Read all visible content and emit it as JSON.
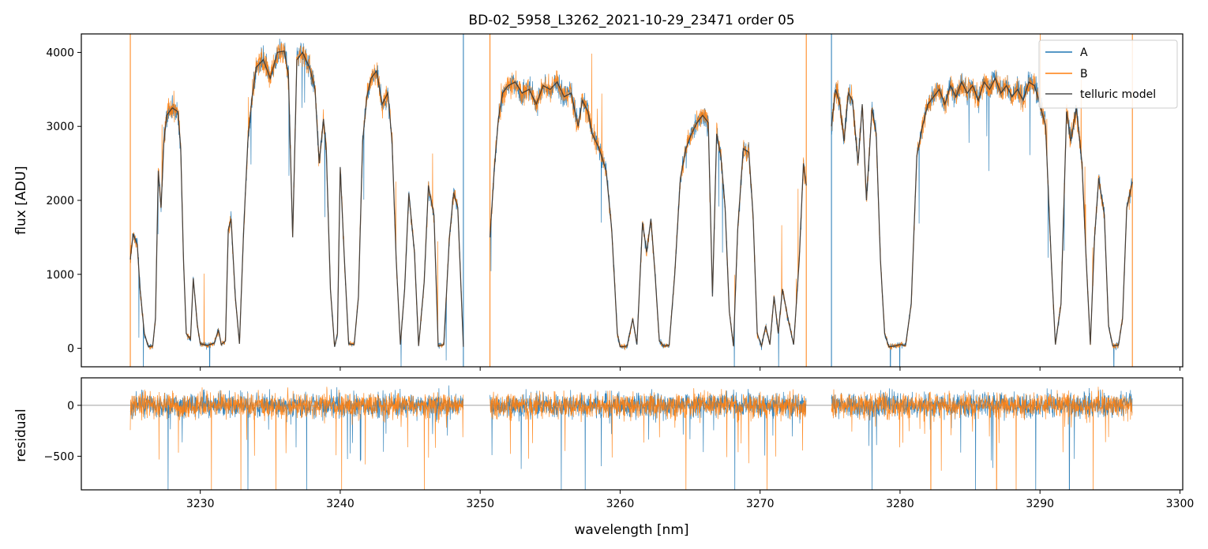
{
  "figure": {
    "title": "BD-02_5958_L3262_2021-10-29_23471  order 05"
  },
  "colors": {
    "A": "#1f77b4",
    "B": "#ff7f0e",
    "model": "#333333",
    "zero_line": "#808080"
  },
  "chart_data": [
    {
      "type": "line",
      "panel": "top",
      "title": "BD-02_5958_L3262_2021-10-29_23471  order 05",
      "xlabel": "",
      "ylabel": "flux [ADU]",
      "xlim": [
        3221.5,
        3300.2
      ],
      "ylim": [
        -250,
        4250
      ],
      "yticks": [
        0,
        1000,
        2000,
        3000,
        4000
      ],
      "xticks": [
        3230,
        3240,
        3250,
        3260,
        3270,
        3280,
        3290,
        3300
      ],
      "legend": {
        "placement": "top-right",
        "entries": [
          "A",
          "B",
          "telluric model"
        ]
      },
      "segments": [
        [
          3225.0,
          3248.8
        ],
        [
          3250.7,
          3273.3
        ],
        [
          3275.1,
          3296.6
        ]
      ],
      "continuum": [
        [
          3225.0,
          3100
        ],
        [
          3240.0,
          3700
        ],
        [
          3248.8,
          3300
        ],
        [
          3250.7,
          3500
        ],
        [
          3260.0,
          3350
        ],
        [
          3273.3,
          3100
        ],
        [
          3275.1,
          3500
        ],
        [
          3285.0,
          3650
        ],
        [
          3296.6,
          3300
        ]
      ],
      "model_series": {
        "name": "telluric model",
        "points": [
          [
            3225.0,
            1200
          ],
          [
            3225.2,
            1550
          ],
          [
            3225.5,
            1400
          ],
          [
            3225.7,
            800
          ],
          [
            3226.0,
            200
          ],
          [
            3226.3,
            20
          ],
          [
            3226.6,
            30
          ],
          [
            3226.8,
            400
          ],
          [
            3227.0,
            2400
          ],
          [
            3227.2,
            1900
          ],
          [
            3227.4,
            2800
          ],
          [
            3227.6,
            3150
          ],
          [
            3228.0,
            3250
          ],
          [
            3228.4,
            3200
          ],
          [
            3228.6,
            2700
          ],
          [
            3228.8,
            1200
          ],
          [
            3229.0,
            200
          ],
          [
            3229.3,
            120
          ],
          [
            3229.5,
            950
          ],
          [
            3229.8,
            300
          ],
          [
            3230.0,
            60
          ],
          [
            3230.5,
            40
          ],
          [
            3231.0,
            70
          ],
          [
            3231.3,
            250
          ],
          [
            3231.5,
            50
          ],
          [
            3231.8,
            100
          ],
          [
            3232.0,
            1600
          ],
          [
            3232.2,
            1750
          ],
          [
            3232.5,
            700
          ],
          [
            3232.8,
            60
          ],
          [
            3233.1,
            1600
          ],
          [
            3233.4,
            2800
          ],
          [
            3233.7,
            3400
          ],
          [
            3234.0,
            3800
          ],
          [
            3234.5,
            3900
          ],
          [
            3235.0,
            3650
          ],
          [
            3235.5,
            4000
          ],
          [
            3236.0,
            4020
          ],
          [
            3236.3,
            3700
          ],
          [
            3236.6,
            1500
          ],
          [
            3236.9,
            3900
          ],
          [
            3237.3,
            4000
          ],
          [
            3237.8,
            3800
          ],
          [
            3238.2,
            3500
          ],
          [
            3238.5,
            2500
          ],
          [
            3238.8,
            3100
          ],
          [
            3239.0,
            2700
          ],
          [
            3239.3,
            800
          ],
          [
            3239.6,
            20
          ],
          [
            3239.8,
            200
          ],
          [
            3240.0,
            2450
          ],
          [
            3240.3,
            1200
          ],
          [
            3240.6,
            60
          ],
          [
            3241.0,
            50
          ],
          [
            3241.3,
            700
          ],
          [
            3241.6,
            2800
          ],
          [
            3241.9,
            3400
          ],
          [
            3242.2,
            3650
          ],
          [
            3242.6,
            3750
          ],
          [
            3243.0,
            3300
          ],
          [
            3243.4,
            3450
          ],
          [
            3243.7,
            2800
          ],
          [
            3244.0,
            1200
          ],
          [
            3244.3,
            50
          ],
          [
            3244.6,
            800
          ],
          [
            3244.9,
            2100
          ],
          [
            3245.3,
            1300
          ],
          [
            3245.6,
            30
          ],
          [
            3246.0,
            900
          ],
          [
            3246.3,
            2200
          ],
          [
            3246.7,
            1800
          ],
          [
            3247.0,
            30
          ],
          [
            3247.4,
            50
          ],
          [
            3247.8,
            1500
          ],
          [
            3248.1,
            2100
          ],
          [
            3248.4,
            1900
          ],
          [
            3248.8,
            20
          ],
          [
            3250.7,
            1500
          ],
          [
            3251.0,
            2400
          ],
          [
            3251.3,
            3100
          ],
          [
            3251.6,
            3450
          ],
          [
            3252.0,
            3550
          ],
          [
            3252.5,
            3600
          ],
          [
            3253.0,
            3450
          ],
          [
            3253.5,
            3500
          ],
          [
            3254.0,
            3300
          ],
          [
            3254.5,
            3550
          ],
          [
            3255.0,
            3500
          ],
          [
            3255.5,
            3600
          ],
          [
            3256.0,
            3400
          ],
          [
            3256.5,
            3450
          ],
          [
            3257.0,
            3000
          ],
          [
            3257.3,
            3350
          ],
          [
            3257.7,
            3200
          ],
          [
            3258.0,
            2900
          ],
          [
            3258.5,
            2700
          ],
          [
            3259.0,
            2400
          ],
          [
            3259.4,
            1600
          ],
          [
            3259.8,
            200
          ],
          [
            3260.0,
            20
          ],
          [
            3260.5,
            30
          ],
          [
            3260.9,
            400
          ],
          [
            3261.2,
            50
          ],
          [
            3261.6,
            1700
          ],
          [
            3261.9,
            1300
          ],
          [
            3262.2,
            1750
          ],
          [
            3262.5,
            1000
          ],
          [
            3262.8,
            100
          ],
          [
            3263.1,
            30
          ],
          [
            3263.5,
            40
          ],
          [
            3263.9,
            1000
          ],
          [
            3264.3,
            2300
          ],
          [
            3264.7,
            2700
          ],
          [
            3265.1,
            2900
          ],
          [
            3265.5,
            3050
          ],
          [
            3265.9,
            3150
          ],
          [
            3266.3,
            3050
          ],
          [
            3266.6,
            700
          ],
          [
            3266.9,
            2900
          ],
          [
            3267.2,
            2600
          ],
          [
            3267.5,
            1900
          ],
          [
            3267.8,
            500
          ],
          [
            3268.1,
            30
          ],
          [
            3268.4,
            1600
          ],
          [
            3268.8,
            2700
          ],
          [
            3269.2,
            2650
          ],
          [
            3269.5,
            1800
          ],
          [
            3269.8,
            200
          ],
          [
            3270.1,
            30
          ],
          [
            3270.4,
            300
          ],
          [
            3270.7,
            50
          ],
          [
            3271.0,
            700
          ],
          [
            3271.3,
            200
          ],
          [
            3271.6,
            800
          ],
          [
            3272.0,
            400
          ],
          [
            3272.4,
            50
          ],
          [
            3272.8,
            1200
          ],
          [
            3273.1,
            2500
          ],
          [
            3273.3,
            2200
          ],
          [
            3275.1,
            3000
          ],
          [
            3275.4,
            3500
          ],
          [
            3275.7,
            3300
          ],
          [
            3276.0,
            2800
          ],
          [
            3276.3,
            3450
          ],
          [
            3276.6,
            3350
          ],
          [
            3277.0,
            2500
          ],
          [
            3277.3,
            3300
          ],
          [
            3277.6,
            2000
          ],
          [
            3278.0,
            3250
          ],
          [
            3278.3,
            2900
          ],
          [
            3278.6,
            1200
          ],
          [
            3278.9,
            200
          ],
          [
            3279.2,
            20
          ],
          [
            3279.6,
            30
          ],
          [
            3280.0,
            50
          ],
          [
            3280.4,
            40
          ],
          [
            3280.8,
            600
          ],
          [
            3281.2,
            2600
          ],
          [
            3281.6,
            3000
          ],
          [
            3282.0,
            3300
          ],
          [
            3282.4,
            3400
          ],
          [
            3282.8,
            3500
          ],
          [
            3283.2,
            3300
          ],
          [
            3283.6,
            3550
          ],
          [
            3284.0,
            3400
          ],
          [
            3284.4,
            3600
          ],
          [
            3284.8,
            3450
          ],
          [
            3285.2,
            3550
          ],
          [
            3285.6,
            3350
          ],
          [
            3286.0,
            3600
          ],
          [
            3286.4,
            3500
          ],
          [
            3286.8,
            3650
          ],
          [
            3287.2,
            3450
          ],
          [
            3287.6,
            3550
          ],
          [
            3288.0,
            3400
          ],
          [
            3288.4,
            3500
          ],
          [
            3288.8,
            3350
          ],
          [
            3289.2,
            3600
          ],
          [
            3289.6,
            3550
          ],
          [
            3290.0,
            3300
          ],
          [
            3290.4,
            3000
          ],
          [
            3290.8,
            1200
          ],
          [
            3291.1,
            50
          ],
          [
            3291.5,
            600
          ],
          [
            3291.9,
            3200
          ],
          [
            3292.2,
            2800
          ],
          [
            3292.6,
            3250
          ],
          [
            3293.0,
            2500
          ],
          [
            3293.3,
            1200
          ],
          [
            3293.6,
            50
          ],
          [
            3293.9,
            1500
          ],
          [
            3294.2,
            2300
          ],
          [
            3294.6,
            1800
          ],
          [
            3294.9,
            300
          ],
          [
            3295.2,
            30
          ],
          [
            3295.6,
            40
          ],
          [
            3295.9,
            400
          ],
          [
            3296.2,
            1900
          ],
          [
            3296.6,
            2250
          ]
        ]
      },
      "series": [
        {
          "name": "A",
          "noise": 110,
          "spike_dir": -1
        },
        {
          "name": "B",
          "noise": 120,
          "spike_dir": 1
        }
      ],
      "vlines": [
        {
          "x": 3225.0,
          "series": "B"
        },
        {
          "x": 3248.8,
          "series": "A"
        },
        {
          "x": 3250.7,
          "series": "B"
        },
        {
          "x": 3273.3,
          "series": "B"
        },
        {
          "x": 3275.1,
          "series": "A"
        },
        {
          "x": 3296.6,
          "series": "B"
        }
      ]
    },
    {
      "type": "line",
      "panel": "bottom",
      "title": "",
      "xlabel": "wavelength [nm]",
      "ylabel": "residual",
      "xlim": [
        3221.5,
        3300.2
      ],
      "ylim": [
        -830,
        270
      ],
      "yticks": [
        0,
        -500
      ],
      "ytick_labels": [
        "0",
        "−500"
      ],
      "xticks": [
        3230,
        3240,
        3250,
        3260,
        3270,
        3280,
        3290,
        3300
      ],
      "zero_line": true,
      "series": [
        {
          "name": "A",
          "noise": 85,
          "spikes": [
            3227.7,
            3233.4,
            3237.6,
            3249.2,
            3255.8,
            3257.5,
            3268.2,
            3278.0,
            3285.4,
            3289.7,
            3292.1
          ]
        },
        {
          "name": "B",
          "noise": 90,
          "spikes": [
            3230.8,
            3232.9,
            3235.4,
            3240.1,
            3246.0,
            3264.7,
            3270.5,
            3282.2,
            3286.9,
            3288.3,
            3293.8
          ]
        }
      ]
    }
  ]
}
